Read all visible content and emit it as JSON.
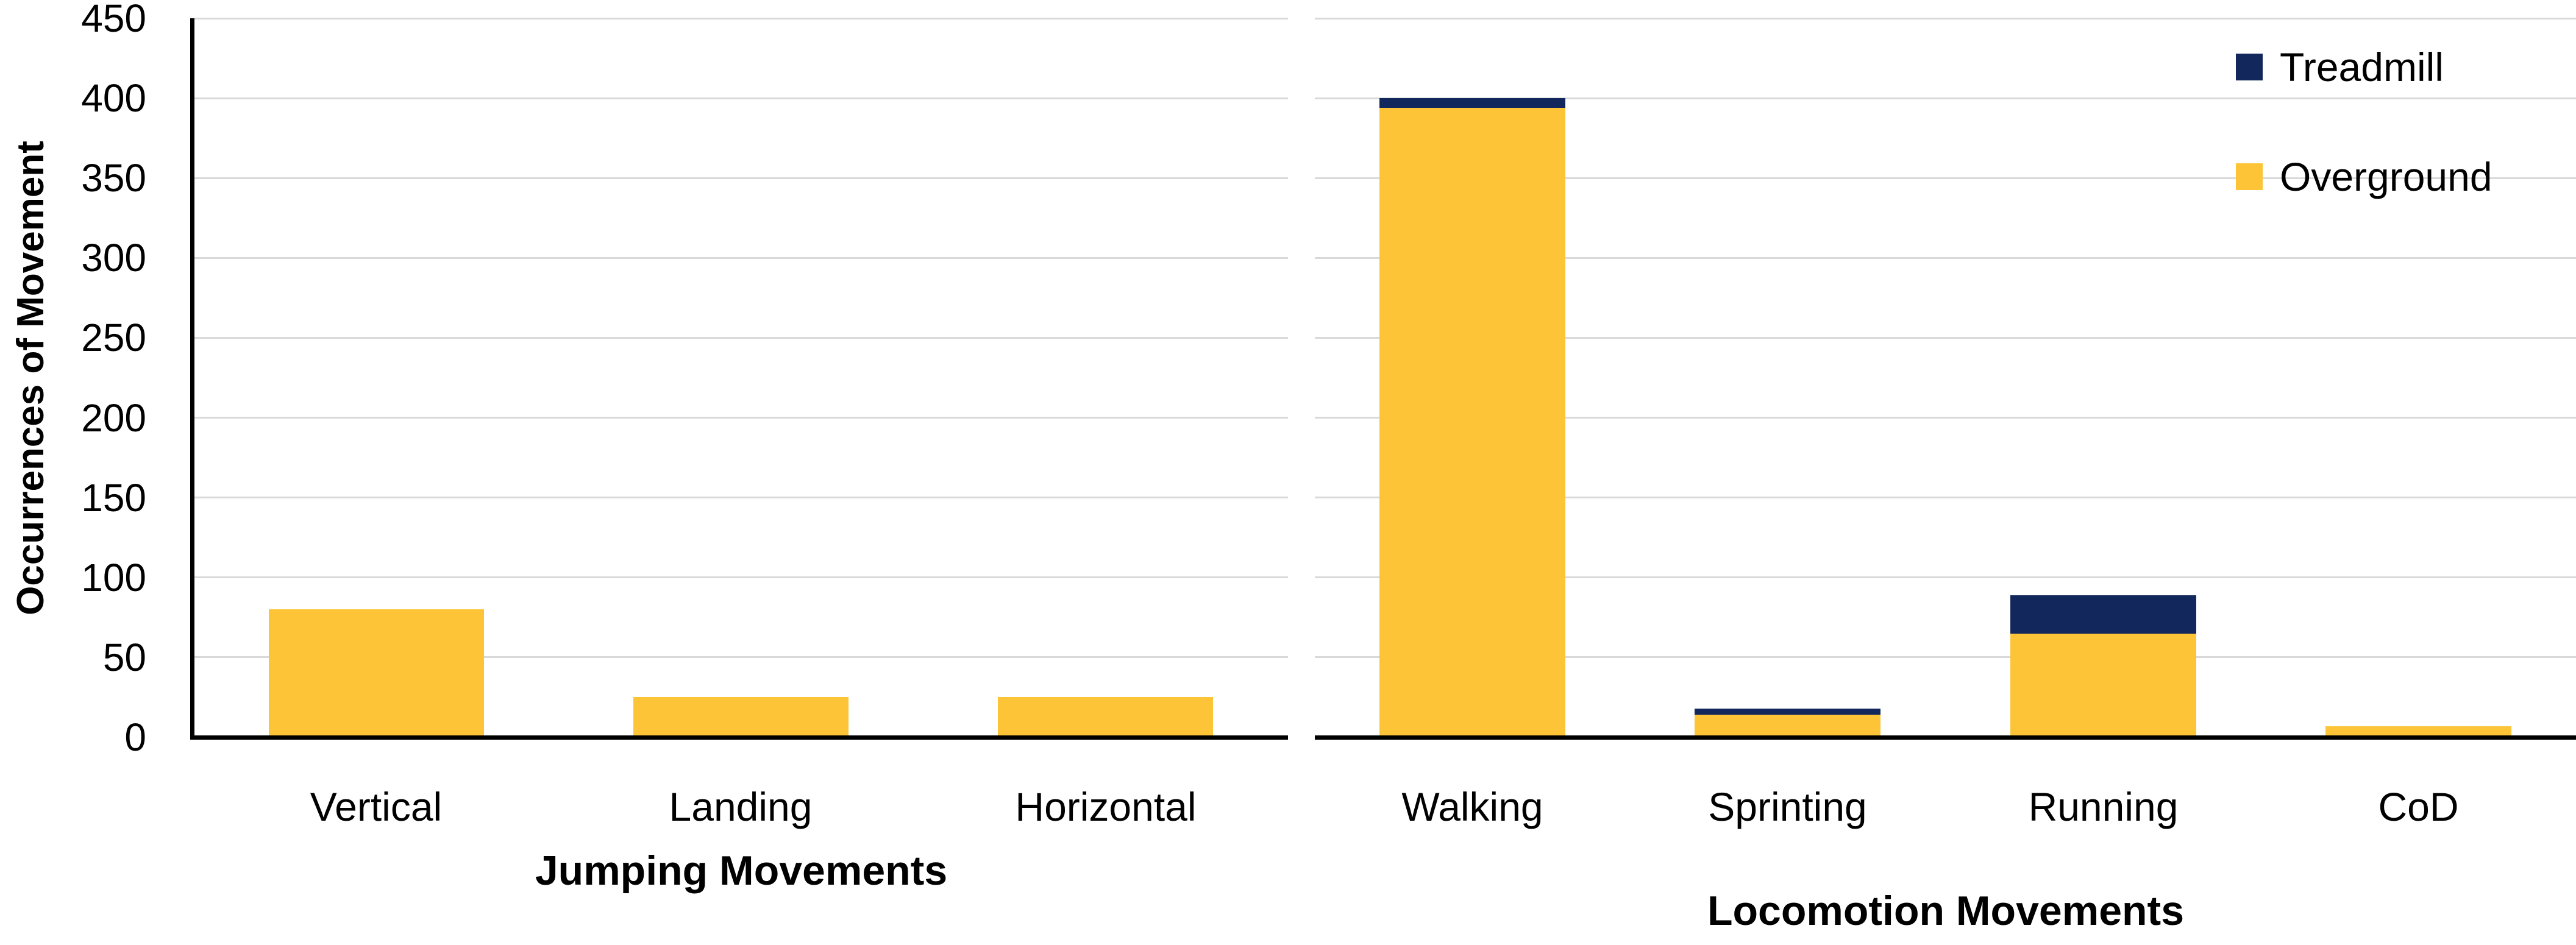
{
  "colors": {
    "treadmill": "#12275b",
    "overground": "#fdc437",
    "gridline": "#d9d9d9",
    "axis": "#000000",
    "background": "#ffffff",
    "text": "#000000"
  },
  "chart_data": {
    "type": "bar",
    "stacked": true,
    "title": "",
    "ylabel": "Occurrences of Movement",
    "ylim": [
      0,
      450
    ],
    "yticks": [
      0,
      50,
      100,
      150,
      200,
      250,
      300,
      350,
      400,
      450
    ],
    "grid": "horizontal",
    "legend": {
      "position": "top-right",
      "entries": [
        {
          "label": "Treadmill",
          "color": "#12275b"
        },
        {
          "label": "Overground",
          "color": "#fdc437"
        }
      ]
    },
    "panels": [
      {
        "xlabel": "Jumping Movements",
        "categories": [
          "Vertical",
          "Landing",
          "Horizontal"
        ],
        "series": [
          {
            "name": "Overground",
            "color": "#fdc437",
            "values": [
              80,
              25,
              25
            ]
          },
          {
            "name": "Treadmill",
            "color": "#12275b",
            "values": [
              0,
              0,
              0
            ]
          }
        ],
        "totals": [
          80,
          25,
          25
        ]
      },
      {
        "xlabel": "Locomotion Movements",
        "categories": [
          "Walking",
          "Sprinting",
          "Running",
          "CoD"
        ],
        "series": [
          {
            "name": "Overground",
            "color": "#fdc437",
            "values": [
              394,
              14,
              65,
              7
            ]
          },
          {
            "name": "Treadmill",
            "color": "#12275b",
            "values": [
              6,
              4,
              24,
              0
            ]
          }
        ],
        "totals": [
          400,
          18,
          89,
          7
        ]
      }
    ]
  }
}
